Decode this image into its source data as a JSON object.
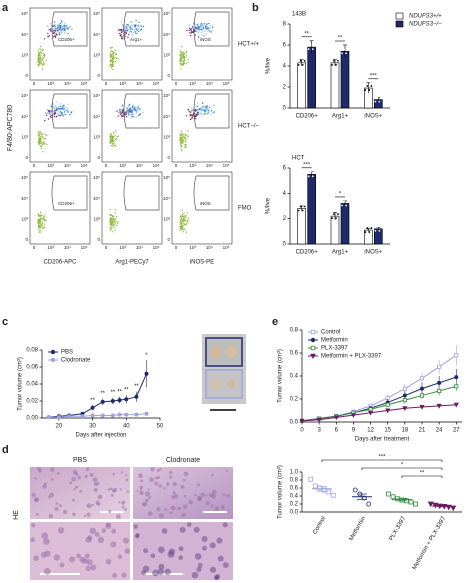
{
  "panels": {
    "a": "a",
    "b": "b",
    "c": "c",
    "d": "d",
    "e": "e"
  },
  "flow": {
    "y_label": "F4/80-APC780",
    "x_labels": [
      "CD206-APC",
      "Arg1-PECy7",
      "iNOS-PE"
    ],
    "row_labels": [
      "HCT+/+",
      "HCT−/−",
      "FMO"
    ],
    "axis_ticks": [
      "0",
      "10³",
      "10⁴",
      "10⁵"
    ],
    "gate_labels": [
      [
        "CD206+",
        "Arg1+",
        "iNOS"
      ],
      [
        null,
        null,
        null
      ],
      [
        "CD206+",
        null,
        "iNOS"
      ]
    ]
  },
  "histology": {
    "columns": [
      "PBS",
      "Clodronate"
    ],
    "row_label": "HE"
  },
  "chart_data": [
    {
      "type": "bar",
      "title": "143B",
      "y_label": "%/live",
      "categories": [
        "CD206+",
        "Arg1+",
        "iNOS+"
      ],
      "series": [
        {
          "name": "NDUFS3+/+",
          "color": "#ffffff",
          "values": [
            4.3,
            4.3,
            1.9
          ],
          "errors": [
            0.3,
            0.3,
            0.5
          ]
        },
        {
          "name": "NDUFS3−/−",
          "color": "#1f2a6b",
          "values": [
            5.8,
            5.4,
            0.8
          ],
          "errors": [
            0.6,
            0.6,
            0.2
          ]
        }
      ],
      "significance": [
        "**",
        "**",
        "***"
      ],
      "ylim": [
        0,
        8
      ],
      "yticks": [
        0,
        2,
        4,
        6,
        8
      ],
      "legend": "upper right"
    },
    {
      "type": "bar",
      "title": "HCT",
      "y_label": "%/live",
      "categories": [
        "CD206+",
        "Arg1+",
        "iNOS+"
      ],
      "series": [
        {
          "color": "#ffffff",
          "values": [
            2.8,
            2.2,
            1.1
          ],
          "errors": [
            0.2,
            0.3,
            0.1
          ]
        },
        {
          "color": "#1f2a6b",
          "values": [
            5.5,
            3.2,
            1.2
          ],
          "errors": [
            0.2,
            0.2,
            0.1
          ]
        }
      ],
      "significance": [
        "***",
        "*",
        null
      ],
      "ylim": [
        0,
        6
      ],
      "yticks": [
        0,
        2,
        4,
        6
      ]
    },
    {
      "type": "line",
      "x_label": "Days after injection",
      "y_label": "Tumor volume (cm³)",
      "x": [
        17,
        20,
        23,
        27,
        30,
        33,
        36,
        38,
        40,
        43,
        46
      ],
      "series": [
        {
          "name": "PBS",
          "color": "#1f2a6b",
          "marker": "circle",
          "values": [
            0.001,
            0.002,
            0.003,
            0.005,
            0.012,
            0.019,
            0.02,
            0.021,
            0.022,
            0.025,
            0.052
          ],
          "errors": [
            0.0005,
            0.001,
            0.001,
            0.002,
            0.003,
            0.004,
            0.004,
            0.004,
            0.005,
            0.006,
            0.016
          ]
        },
        {
          "name": "Clodronate",
          "color": "#9fa3df",
          "marker": "circle",
          "values": [
            0.001,
            0.001,
            0.002,
            0.002,
            0.003,
            0.003,
            0.003,
            0.004,
            0.004,
            0.004,
            0.005
          ],
          "errors": [
            0.0005,
            0.0005,
            0.0005,
            0.001,
            0.001,
            0.001,
            0.001,
            0.001,
            0.001,
            0.001,
            0.001
          ]
        }
      ],
      "significance": [
        null,
        null,
        null,
        null,
        "**",
        "**",
        "**",
        "**",
        "**",
        "**",
        "*"
      ],
      "xlim": [
        15,
        50
      ],
      "xticks": [
        20,
        30,
        40,
        50
      ],
      "ylim": [
        0,
        0.08
      ],
      "yticks": [
        {
          "value": 0,
          "label": "0.00"
        },
        {
          "value": 0.02,
          "label": "0.02"
        },
        {
          "value": 0.04,
          "label": "0.04"
        },
        {
          "value": 0.06,
          "label": "0.06"
        },
        {
          "value": 0.08,
          "label": "0.08"
        }
      ],
      "legend": "upper left"
    },
    {
      "type": "line",
      "x_label": "Days after treatment",
      "y_label": "Tumor volume (cm³)",
      "x": [
        0,
        3,
        6,
        9,
        12,
        15,
        18,
        21,
        24,
        27
      ],
      "series": [
        {
          "name": "Control",
          "color": "#9fa3df",
          "marker": "square",
          "values": [
            0.01,
            0.03,
            0.05,
            0.09,
            0.14,
            0.21,
            0.29,
            0.38,
            0.48,
            0.58
          ],
          "errors": [
            0.005,
            0.01,
            0.01,
            0.02,
            0.02,
            0.03,
            0.04,
            0.05,
            0.06,
            0.09
          ]
        },
        {
          "name": "Metformin",
          "color": "#1f2a6b",
          "marker": "circle",
          "values": [
            0.01,
            0.03,
            0.05,
            0.08,
            0.12,
            0.17,
            0.23,
            0.29,
            0.34,
            0.39
          ],
          "errors": [
            0.005,
            0.01,
            0.01,
            0.015,
            0.02,
            0.03,
            0.04,
            0.05,
            0.06,
            0.07
          ]
        },
        {
          "name": "PLX-3397",
          "color": "#2e8b3a",
          "marker": "square",
          "values": [
            0.01,
            0.03,
            0.05,
            0.08,
            0.11,
            0.15,
            0.19,
            0.23,
            0.27,
            0.31
          ],
          "errors": [
            0.005,
            0.01,
            0.01,
            0.01,
            0.02,
            0.02,
            0.03,
            0.03,
            0.04,
            0.04
          ]
        },
        {
          "name": "Metformin + PLX-3397",
          "color": "#6b1d5e",
          "marker": "triangle",
          "values": [
            0.01,
            0.02,
            0.04,
            0.06,
            0.08,
            0.1,
            0.12,
            0.13,
            0.14,
            0.15
          ],
          "errors": [
            0.005,
            0.005,
            0.01,
            0.01,
            0.01,
            0.01,
            0.015,
            0.015,
            0.02,
            0.02
          ]
        }
      ],
      "xlim": [
        0,
        28
      ],
      "xticks": [
        0,
        3,
        6,
        9,
        12,
        15,
        18,
        21,
        24,
        27
      ],
      "ylim": [
        0,
        0.8
      ],
      "yticks": [
        {
          "value": 0,
          "label": "0.0"
        },
        {
          "value": 0.2,
          "label": "0.2"
        },
        {
          "value": 0.4,
          "label": "0.4"
        },
        {
          "value": 0.6,
          "label": "0.6"
        },
        {
          "value": 0.8,
          "label": "0.8"
        }
      ],
      "legend": "upper left"
    },
    {
      "type": "dot",
      "y_label": "Tumor volume (cm³)",
      "categories": [
        "Control",
        "Metformin",
        "PLX-3397",
        "Metformin + PLX-3397"
      ],
      "colors": [
        "#9fa3df",
        "#1f2a6b",
        "#2e8b3a",
        "#6b1d5e"
      ],
      "markers": [
        "square",
        "circle",
        "square",
        "triangle"
      ],
      "points": [
        [
          0.82,
          0.65,
          0.6,
          0.55,
          0.5,
          0.42
        ],
        [
          0.55,
          0.45,
          0.35,
          0.2
        ],
        [
          0.45,
          0.38,
          0.33,
          0.3,
          0.28,
          0.25,
          0.2
        ],
        [
          0.2,
          0.17,
          0.15,
          0.14,
          0.12,
          0.1
        ]
      ],
      "means": [
        0.58,
        0.38,
        0.31,
        0.15
      ],
      "sems": [
        0.06,
        0.07,
        0.03,
        0.015
      ],
      "significance": [
        "***",
        "*",
        "**"
      ],
      "ylim": [
        0,
        1.0
      ],
      "yticks": [
        {
          "value": 0,
          "label": "0.0"
        },
        {
          "value": 0.2,
          "label": "0.2"
        },
        {
          "value": 0.4,
          "label": "0.4"
        },
        {
          "value": 0.6,
          "label": "0.6"
        },
        {
          "value": 0.8,
          "label": "0.8"
        },
        {
          "value": 1.0,
          "label": "1.0"
        }
      ]
    }
  ]
}
